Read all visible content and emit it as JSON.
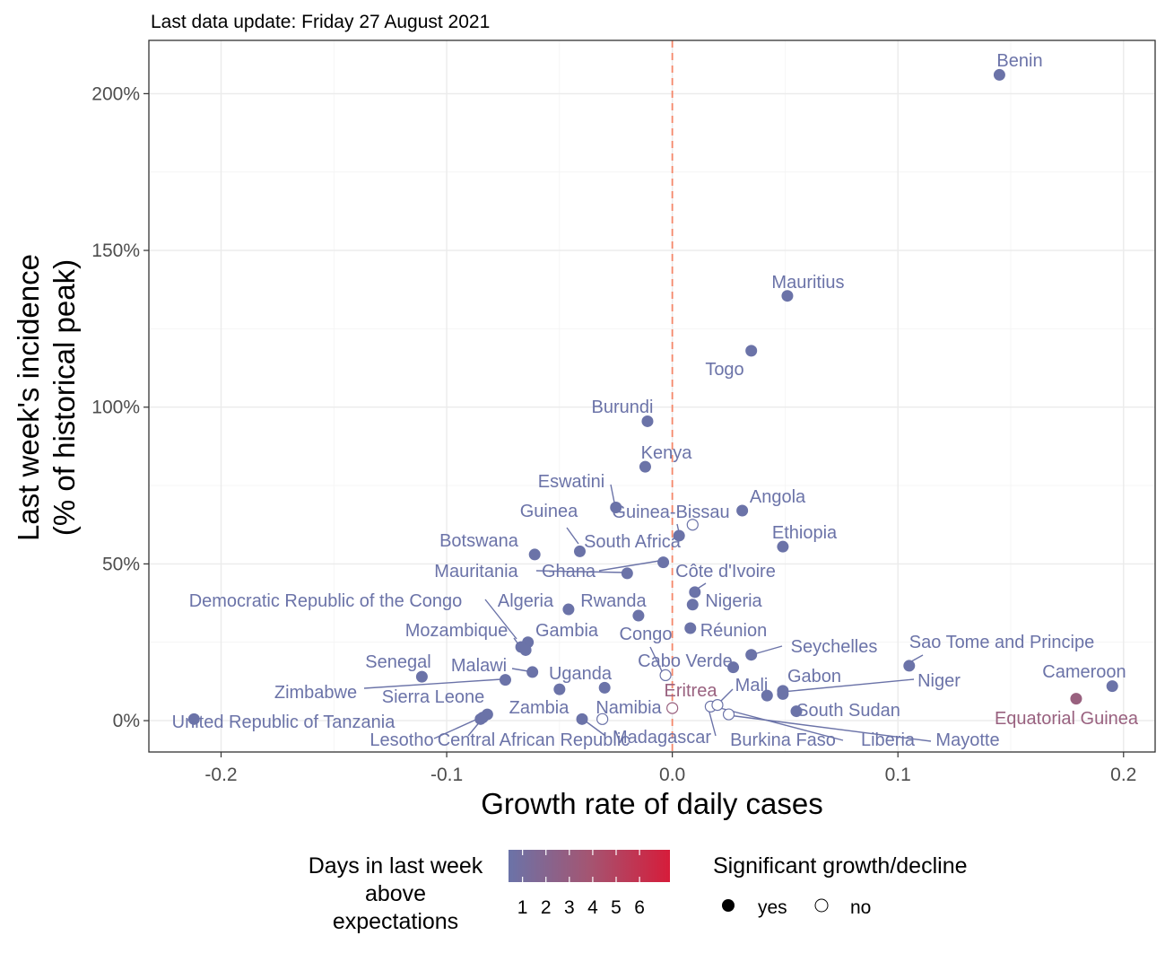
{
  "chart_data": {
    "type": "scatter",
    "subtitle": "Last data update: Friday 27 August 2021",
    "xlabel": "Growth rate of daily cases",
    "ylabel": [
      "Last week's incidence",
      "(% of historical peak)"
    ],
    "xlim": [
      -0.232,
      0.214
    ],
    "ylim": [
      -10,
      217
    ],
    "x_ticks": [
      -0.2,
      -0.1,
      0.0,
      0.1,
      0.2
    ],
    "x_tick_labels": [
      "-0.2",
      "-0.1",
      "0.0",
      "0.1",
      "0.2"
    ],
    "y_ticks": [
      0,
      50,
      100,
      150,
      200
    ],
    "y_tick_labels": [
      "0%",
      "50%",
      "100%",
      "150%",
      "200%"
    ],
    "grid": true,
    "reference_line": {
      "x": 0,
      "style": "dashed",
      "color": "#f4876a"
    },
    "colors": {
      "low": "#6b73a8",
      "mid": "#99617f",
      "high": "#d61c3a",
      "grid": "#ebebeb"
    },
    "points": [
      {
        "label": "Benin",
        "x": 0.145,
        "y": 206.0,
        "days": 1,
        "sig": "yes"
      },
      {
        "label": "Mauritius",
        "x": 0.051,
        "y": 135.5,
        "days": 1,
        "sig": "yes"
      },
      {
        "label": "Togo",
        "x": 0.035,
        "y": 118.0,
        "days": 1,
        "sig": "yes"
      },
      {
        "label": "Burundi",
        "x": -0.011,
        "y": 95.5,
        "days": 1,
        "sig": "yes"
      },
      {
        "label": "Kenya",
        "x": -0.012,
        "y": 81.0,
        "days": 1,
        "sig": "yes"
      },
      {
        "label": "Eswatini",
        "x": -0.025,
        "y": 68.0,
        "days": 1,
        "sig": "yes"
      },
      {
        "label": "Angola",
        "x": 0.031,
        "y": 67.0,
        "days": 1,
        "sig": "yes"
      },
      {
        "label": "Guinea-Bissau",
        "x": 0.009,
        "y": 62.5,
        "days": 1,
        "sig": "no"
      },
      {
        "label": "Guinea",
        "x": -0.041,
        "y": 54.0,
        "days": 1,
        "sig": "yes"
      },
      {
        "label": "South Africa",
        "x": 0.003,
        "y": 59.0,
        "days": 1,
        "sig": "yes"
      },
      {
        "label": "Ethiopia",
        "x": 0.049,
        "y": 55.5,
        "days": 1,
        "sig": "yes"
      },
      {
        "label": "Botswana",
        "x": -0.061,
        "y": 53.0,
        "days": 1,
        "sig": "yes"
      },
      {
        "label": "Mauritania",
        "x": -0.004,
        "y": 50.5,
        "days": 1,
        "sig": "yes"
      },
      {
        "label": "Ghana",
        "x": -0.02,
        "y": 47.0,
        "days": 1,
        "sig": "yes"
      },
      {
        "label": "Côte d'Ivoire",
        "x": 0.01,
        "y": 41.0,
        "days": 1,
        "sig": "yes"
      },
      {
        "label": "Nigeria",
        "x": 0.009,
        "y": 37.0,
        "days": 1,
        "sig": "yes"
      },
      {
        "label": "Algeria",
        "x": -0.046,
        "y": 35.5,
        "days": 1,
        "sig": "yes"
      },
      {
        "label": "Rwanda",
        "x": -0.015,
        "y": 33.5,
        "days": 1,
        "sig": "yes"
      },
      {
        "label": "Réunion",
        "x": 0.008,
        "y": 29.5,
        "days": 1,
        "sig": "yes"
      },
      {
        "label": "Democratic Republic of the Congo",
        "x": -0.064,
        "y": 25.0,
        "days": 1,
        "sig": "yes"
      },
      {
        "label": "Mozambique",
        "x": -0.067,
        "y": 23.5,
        "days": 1,
        "sig": "yes"
      },
      {
        "label": "Gambia",
        "x": -0.065,
        "y": 22.5,
        "days": 1,
        "sig": "yes"
      },
      {
        "label": "Congo",
        "x": -0.003,
        "y": 14.5,
        "days": 1,
        "sig": "no"
      },
      {
        "label": "Seychelles",
        "x": 0.035,
        "y": 21.0,
        "days": 1,
        "sig": "yes"
      },
      {
        "label": "Sao Tome and Principe",
        "x": 0.105,
        "y": 17.5,
        "days": 1,
        "sig": "yes"
      },
      {
        "label": "Cabo Verde",
        "x": 0.027,
        "y": 17.0,
        "days": 1,
        "sig": "yes"
      },
      {
        "label": "Senegal",
        "x": -0.111,
        "y": 14.0,
        "days": 1,
        "sig": "yes"
      },
      {
        "label": "Malawi",
        "x": -0.062,
        "y": 15.5,
        "days": 1,
        "sig": "yes"
      },
      {
        "label": "Uganda",
        "x": -0.03,
        "y": 10.5,
        "days": 1,
        "sig": "yes"
      },
      {
        "label": "Gabon",
        "x": 0.049,
        "y": 9.5,
        "days": 1,
        "sig": "yes"
      },
      {
        "label": "Niger",
        "x": 0.049,
        "y": 8.5,
        "days": 1,
        "sig": "yes"
      },
      {
        "label": "Zimbabwe",
        "x": -0.074,
        "y": 13.0,
        "days": 1,
        "sig": "yes"
      },
      {
        "label": "Sierra Leone",
        "x": -0.05,
        "y": 10.0,
        "days": 1,
        "sig": "yes"
      },
      {
        "label": "Cameroon",
        "x": 0.195,
        "y": 11.0,
        "days": 1,
        "sig": "yes"
      },
      {
        "label": "Mali",
        "x": 0.042,
        "y": 8.0,
        "days": 1,
        "sig": "yes"
      },
      {
        "label": "Eritrea",
        "x": 0.0,
        "y": 4.0,
        "days": 2,
        "sig": "no"
      },
      {
        "label": "Equatorial Guinea",
        "x": 0.179,
        "y": 7.0,
        "days": 2,
        "sig": "yes"
      },
      {
        "label": "South Sudan",
        "x": 0.055,
        "y": 3.0,
        "days": 1,
        "sig": "yes"
      },
      {
        "label": "Zambia",
        "x": -0.082,
        "y": 2.0,
        "days": 1,
        "sig": "yes"
      },
      {
        "label": "Namibia",
        "x": -0.031,
        "y": 0.5,
        "days": 1,
        "sig": "no"
      },
      {
        "label": "Burkina Faso",
        "x": 0.017,
        "y": 4.5,
        "days": 1,
        "sig": "no"
      },
      {
        "label": "Liberia",
        "x": 0.02,
        "y": 5.0,
        "days": 1,
        "sig": "no"
      },
      {
        "label": "Mayotte",
        "x": 0.025,
        "y": 2.0,
        "days": 1,
        "sig": "no"
      },
      {
        "label": "Madagascar",
        "x": -0.04,
        "y": 0.5,
        "days": 1,
        "sig": "yes"
      },
      {
        "label": "Lesotho",
        "x": -0.084,
        "y": 1.0,
        "days": 1,
        "sig": "yes"
      },
      {
        "label": "Central African Republic",
        "x": -0.085,
        "y": 0.5,
        "days": 1,
        "sig": "yes"
      },
      {
        "label": "United Republic of Tanzania",
        "x": -0.212,
        "y": 0.5,
        "days": 1,
        "sig": "yes"
      }
    ],
    "legend": {
      "days_title": [
        "Days in last week",
        "above",
        "expectations"
      ],
      "days_ticks": [
        "1",
        "2",
        "3",
        "4",
        "5",
        "6"
      ],
      "sig_title": "Significant growth/decline",
      "sig_entries": [
        "yes",
        "no"
      ]
    }
  }
}
